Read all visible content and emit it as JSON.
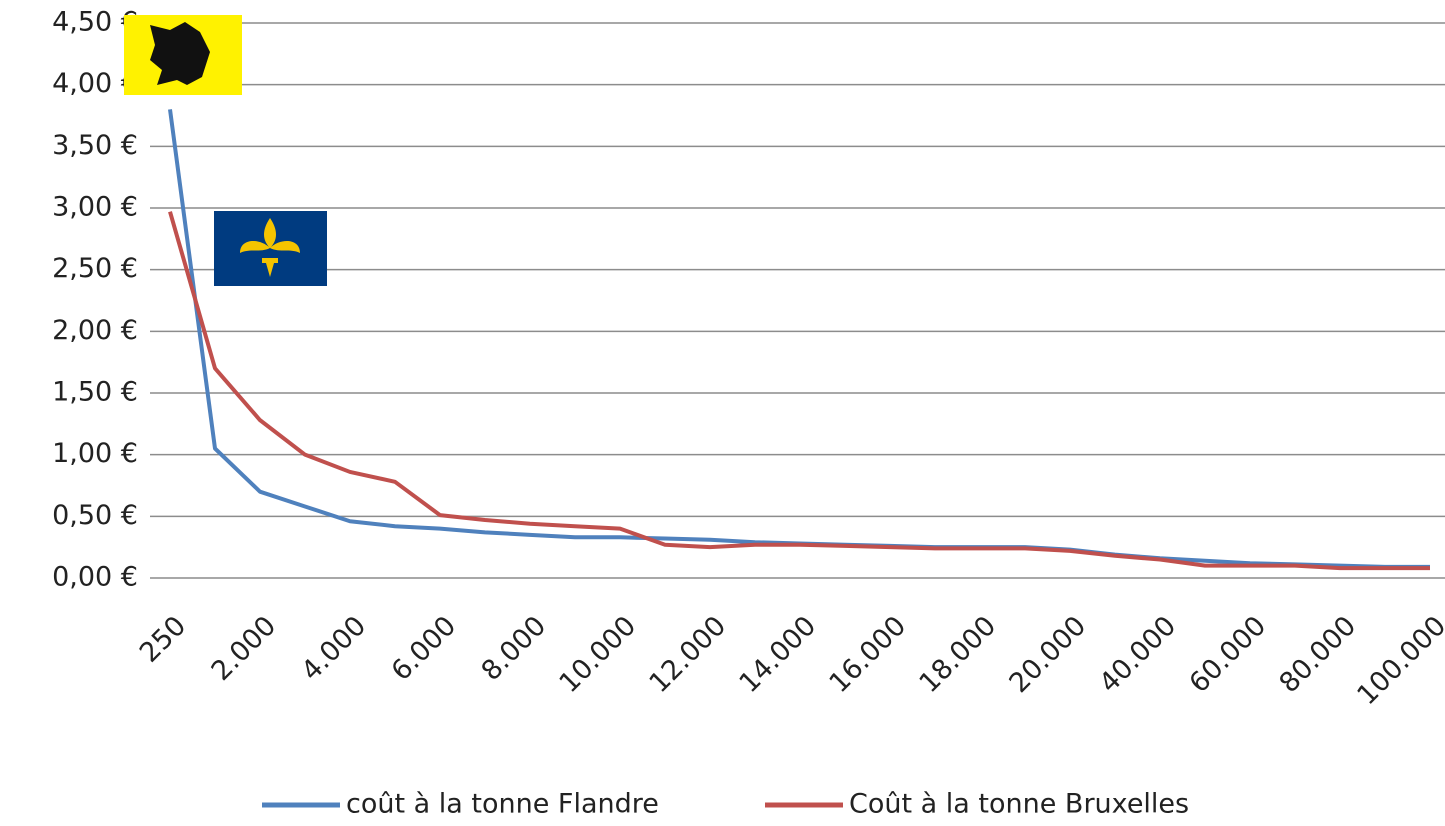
{
  "chart_data": {
    "type": "line",
    "categories": [
      "250",
      null,
      "2.000",
      null,
      "4.000",
      null,
      "6.000",
      null,
      "8.000",
      null,
      "10.000",
      null,
      "12.000",
      null,
      "14.000",
      null,
      "16.000",
      null,
      "18.000",
      null,
      "20.000",
      null,
      "40.000",
      null,
      "60.000",
      null,
      "80.000",
      null,
      "100.000"
    ],
    "series": [
      {
        "name": "coût à la tonne Flandre",
        "color": "#4f81bd",
        "values": [
          3.8,
          1.05,
          0.7,
          0.58,
          0.46,
          0.42,
          0.4,
          0.37,
          0.35,
          0.33,
          0.33,
          0.32,
          0.31,
          0.29,
          0.28,
          0.27,
          0.26,
          0.25,
          0.25,
          0.25,
          0.23,
          0.19,
          0.16,
          0.14,
          0.12,
          0.11,
          0.1,
          0.09,
          0.09
        ]
      },
      {
        "name": "Coût à la tonne Bruxelles",
        "color": "#c0504d",
        "values": [
          2.97,
          1.7,
          1.28,
          1.0,
          0.86,
          0.78,
          0.51,
          0.47,
          0.44,
          0.42,
          0.4,
          0.27,
          0.25,
          0.27,
          0.27,
          0.26,
          0.25,
          0.24,
          0.24,
          0.24,
          0.22,
          0.18,
          0.15,
          0.1,
          0.1,
          0.1,
          0.08,
          0.08,
          0.08
        ]
      }
    ],
    "ylim": [
      0,
      4.5
    ],
    "yticks": [
      {
        "value": 0,
        "label": "0,00 €"
      },
      {
        "value": 0.5,
        "label": "0,50 €"
      },
      {
        "value": 1,
        "label": "1,00 €"
      },
      {
        "value": 1.5,
        "label": "1,50 €"
      },
      {
        "value": 2,
        "label": "2,00 €"
      },
      {
        "value": 2.5,
        "label": "2,50 €"
      },
      {
        "value": 3,
        "label": "3,00 €"
      },
      {
        "value": 3.5,
        "label": "3,50 €"
      },
      {
        "value": 4,
        "label": "4,00 €"
      },
      {
        "value": 4.5,
        "label": "4,50 €"
      }
    ],
    "grid": true,
    "legend": "bottom"
  }
}
